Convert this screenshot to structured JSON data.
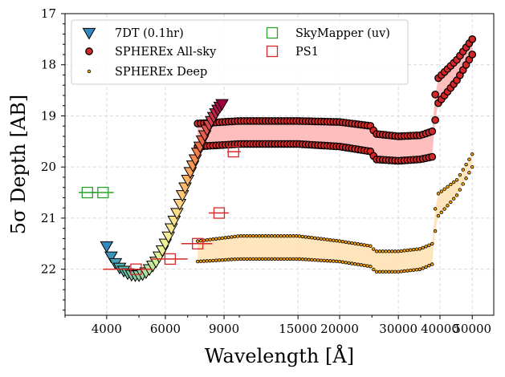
{
  "chart_data": {
    "type": "scatter",
    "xlabel": "Wavelength [Å]",
    "ylabel": "5σ Depth [AB]",
    "xscale": "log",
    "xlim": [
      3000,
      58000
    ],
    "ylim": [
      22.9,
      17.0
    ],
    "y_inverted": true,
    "grid": true,
    "legend_position": "top-left",
    "x_tick_labels": [
      "4000",
      "6000",
      "9000",
      "15000",
      "20000",
      "30000",
      "40000",
      "50000"
    ],
    "x_ticks": [
      4000,
      6000,
      9000,
      15000,
      20000,
      30000,
      40000,
      50000
    ],
    "y_tick_labels": [
      "17",
      "18",
      "19",
      "20",
      "21",
      "22"
    ],
    "y_ticks": [
      17,
      18,
      19,
      20,
      21,
      22
    ],
    "series": [
      {
        "name": "7DT (0.1hr)",
        "marker": "triangle-down",
        "colormap": "Spectral_r",
        "x": [
          4000,
          4125,
          4250,
          4375,
          4500,
          4625,
          4750,
          4875,
          5000,
          5125,
          5250,
          5375,
          5500,
          5625,
          5750,
          5875,
          6000,
          6125,
          6250,
          6375,
          6500,
          6625,
          6750,
          6875,
          7000,
          7125,
          7250,
          7375,
          7500,
          7625,
          7750,
          7875,
          8000,
          8125,
          8250,
          8375,
          8500,
          8625,
          8750,
          8875
        ],
        "y": [
          21.55,
          21.75,
          21.88,
          21.97,
          22.03,
          22.08,
          22.11,
          22.12,
          22.12,
          22.1,
          22.06,
          22.0,
          21.93,
          21.85,
          21.75,
          21.63,
          21.5,
          21.36,
          21.2,
          21.05,
          20.9,
          20.72,
          20.55,
          20.4,
          20.25,
          20.1,
          19.97,
          19.85,
          19.72,
          19.6,
          19.48,
          19.38,
          19.27,
          19.18,
          19.1,
          19.02,
          18.95,
          18.88,
          18.82,
          18.77
        ]
      },
      {
        "name": "SPHEREx All-sky",
        "marker": "circle",
        "color": "#000000",
        "face": "#d62728",
        "band_fill": "#ffb3b3",
        "x": [
          7500,
          10000,
          15000,
          20000,
          25000,
          25500,
          30000,
          35000,
          38000,
          39000,
          45000,
          50000
        ],
        "y_bright": [
          19.15,
          19.1,
          19.1,
          19.12,
          19.2,
          19.35,
          19.4,
          19.38,
          19.3,
          18.3,
          17.9,
          17.5
        ],
        "y_faint": [
          19.6,
          19.55,
          19.55,
          19.6,
          19.7,
          19.85,
          19.88,
          19.85,
          19.8,
          18.8,
          18.3,
          17.8
        ]
      },
      {
        "name": "SPHEREx Deep",
        "marker": "dot",
        "color": "#000000",
        "face": "#ffa500",
        "band_fill": "#ffe0b0",
        "x": [
          7500,
          10000,
          15000,
          20000,
          25000,
          25500,
          30000,
          35000,
          38000,
          39000,
          45000,
          50000
        ],
        "y_bright": [
          21.45,
          21.35,
          21.35,
          21.45,
          21.55,
          21.65,
          21.65,
          21.6,
          21.5,
          20.55,
          20.25,
          19.75
        ],
        "y_faint": [
          21.85,
          21.8,
          21.8,
          21.85,
          21.95,
          22.05,
          22.05,
          22.0,
          21.9,
          21.0,
          20.55,
          20.0
        ]
      },
      {
        "name": "SkyMapper (uv)",
        "marker": "square-open",
        "color": "#2ca02c",
        "x": [
          3500,
          3900
        ],
        "y": [
          20.5,
          20.5
        ],
        "xerr": [
          200,
          300
        ]
      },
      {
        "name": "PS1",
        "marker": "square-open",
        "color": "#d62728",
        "x": [
          4900,
          6200,
          7500,
          8700,
          9600
        ],
        "y": [
          22.0,
          21.8,
          21.5,
          20.9,
          19.7
        ],
        "x_low": [
          3900,
          5400,
          6700,
          8100,
          9200
        ],
        "x_high": [
          5500,
          7000,
          8300,
          9300,
          10100
        ]
      }
    ]
  }
}
